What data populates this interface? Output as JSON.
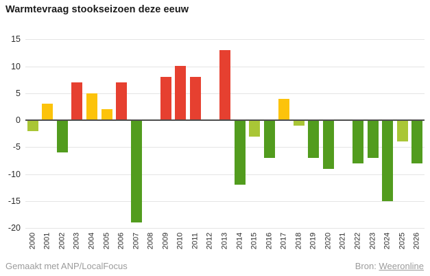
{
  "header": {
    "title": "Warmtevraag stookseizoen deze eeuw"
  },
  "chart_data": {
    "type": "bar",
    "title": "Warmtevraag stookseizoen deze eeuw",
    "xlabel": "",
    "ylabel": "",
    "categories": [
      "2000",
      "2001",
      "2002",
      "2003",
      "2004",
      "2005",
      "2006",
      "2007",
      "2008",
      "2009",
      "2010",
      "2011",
      "2012",
      "2013",
      "2014",
      "2015",
      "2016",
      "2017",
      "2018",
      "2019",
      "2020",
      "2021",
      "2022",
      "2023",
      "2024",
      "2025",
      "2026"
    ],
    "values": [
      -2,
      3,
      -6,
      7,
      5,
      2,
      7,
      -19,
      0,
      8,
      10,
      8,
      0,
      13,
      -12,
      -3,
      -7,
      4,
      -1,
      -7,
      -9,
      0,
      -8,
      -7,
      -15,
      -4,
      -8
    ],
    "bar_colors": [
      "#a9c636",
      "#fcc30b",
      "#529c1e",
      "#e64030",
      "#fcc30b",
      "#fcc30b",
      "#e64030",
      "#529c1e",
      null,
      "#e64030",
      "#e64030",
      "#e64030",
      null,
      "#e64030",
      "#529c1e",
      "#a9c636",
      "#529c1e",
      "#fcc30b",
      "#a9c636",
      "#529c1e",
      "#529c1e",
      null,
      "#529c1e",
      "#529c1e",
      "#529c1e",
      "#a9c636",
      "#529c1e"
    ],
    "yticks": [
      15,
      10,
      5,
      0,
      -5,
      -10,
      -15,
      -20
    ],
    "ylim": [
      -20,
      15
    ],
    "grid": true,
    "legend": "none",
    "palette": {
      "red": "#e64030",
      "yellow": "#fcc30b",
      "green": "#529c1e",
      "light_green": "#a9c636"
    }
  },
  "footer": {
    "credit": "Gemaakt met ANP/LocalFocus",
    "source_label": "Bron:",
    "source_link": "Weeronline"
  }
}
